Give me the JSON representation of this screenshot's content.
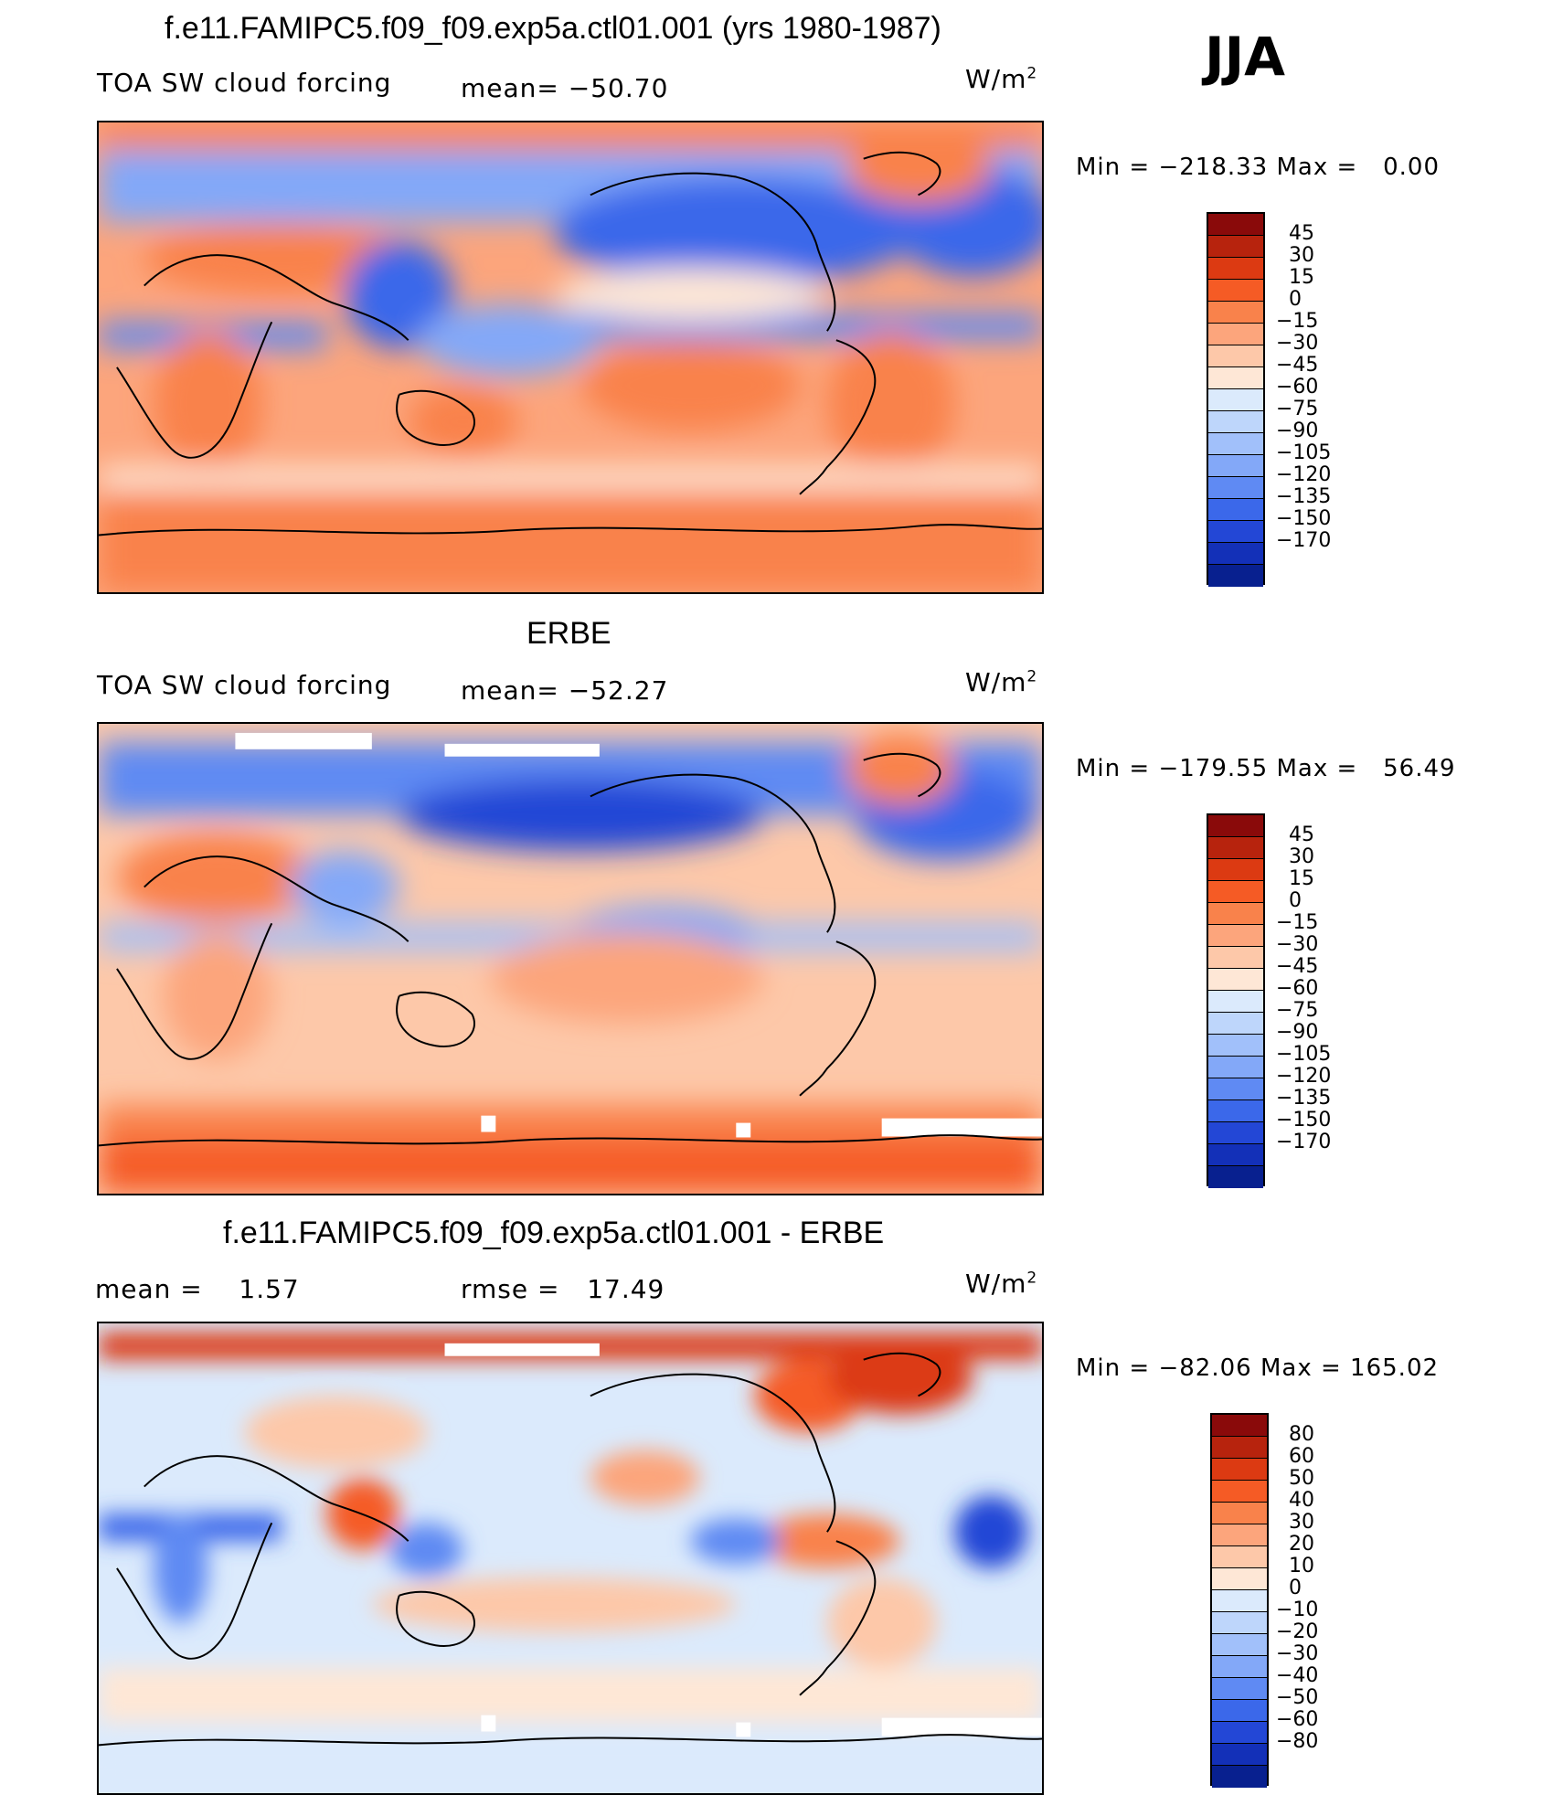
{
  "season": "JJA",
  "units_base": "W/m",
  "units_exp": "2",
  "panels": [
    {
      "title": "f.e11.FAMIPC5.f09_f09.exp5a.ctl01.001 (yrs 1980-1987)",
      "left_label": "TOA SW cloud forcing",
      "stat_label": "mean=",
      "stat_value": "−50.70",
      "min_label": "Min",
      "min_value": "−218.33",
      "max_label": "Max",
      "max_value": "0.00",
      "colorbar": {
        "colors": [
          "#8a0a0a",
          "#b7230d",
          "#dc3a12",
          "#f55b25",
          "#f9824b",
          "#fca57c",
          "#fdc8a9",
          "#fee7d6",
          "#dbeafc",
          "#bed6fb",
          "#a1c0fa",
          "#83a8f8",
          "#5f8af3",
          "#3b68ea",
          "#2347d6",
          "#1330b8",
          "#08208f"
        ],
        "ticks": [
          "45",
          "30",
          "15",
          "0",
          "−15",
          "−30",
          "−45",
          "−60",
          "−75",
          "−90",
          "−105",
          "−120",
          "−135",
          "−150",
          "−170"
        ]
      }
    },
    {
      "title": "ERBE",
      "left_label": "TOA SW cloud forcing",
      "stat_label": "mean=",
      "stat_value": "−52.27",
      "min_label": "Min",
      "min_value": "−179.55",
      "max_label": "Max",
      "max_value": "56.49",
      "colorbar": {
        "colors": [
          "#8a0a0a",
          "#b7230d",
          "#dc3a12",
          "#f55b25",
          "#f9824b",
          "#fca57c",
          "#fdc8a9",
          "#fee7d6",
          "#dbeafc",
          "#bed6fb",
          "#a1c0fa",
          "#83a8f8",
          "#5f8af3",
          "#3b68ea",
          "#2347d6",
          "#1330b8",
          "#08208f"
        ],
        "ticks": [
          "45",
          "30",
          "15",
          "0",
          "−15",
          "−30",
          "−45",
          "−60",
          "−75",
          "−90",
          "−105",
          "−120",
          "−135",
          "−150",
          "−170"
        ]
      }
    },
    {
      "title": "f.e11.FAMIPC5.f09_f09.exp5a.ctl01.001 - ERBE",
      "left_label": "mean =",
      "left_value": "1.57",
      "stat_label": "rmse =",
      "stat_value": "17.49",
      "min_label": "Min",
      "min_value": "−82.06",
      "max_label": "Max",
      "max_value": "165.02",
      "colorbar": {
        "colors": [
          "#8a0a0a",
          "#b7230d",
          "#dc3a12",
          "#f55b25",
          "#f9824b",
          "#fca57c",
          "#fdc8a9",
          "#fee7d6",
          "#dbeafc",
          "#bed6fb",
          "#a1c0fa",
          "#83a8f8",
          "#5f8af3",
          "#3b68ea",
          "#2347d6",
          "#1330b8",
          "#08208f"
        ],
        "ticks": [
          "80",
          "60",
          "50",
          "40",
          "30",
          "20",
          "10",
          "0",
          "−10",
          "−20",
          "−30",
          "−40",
          "−50",
          "−60",
          "−80"
        ]
      }
    }
  ]
}
